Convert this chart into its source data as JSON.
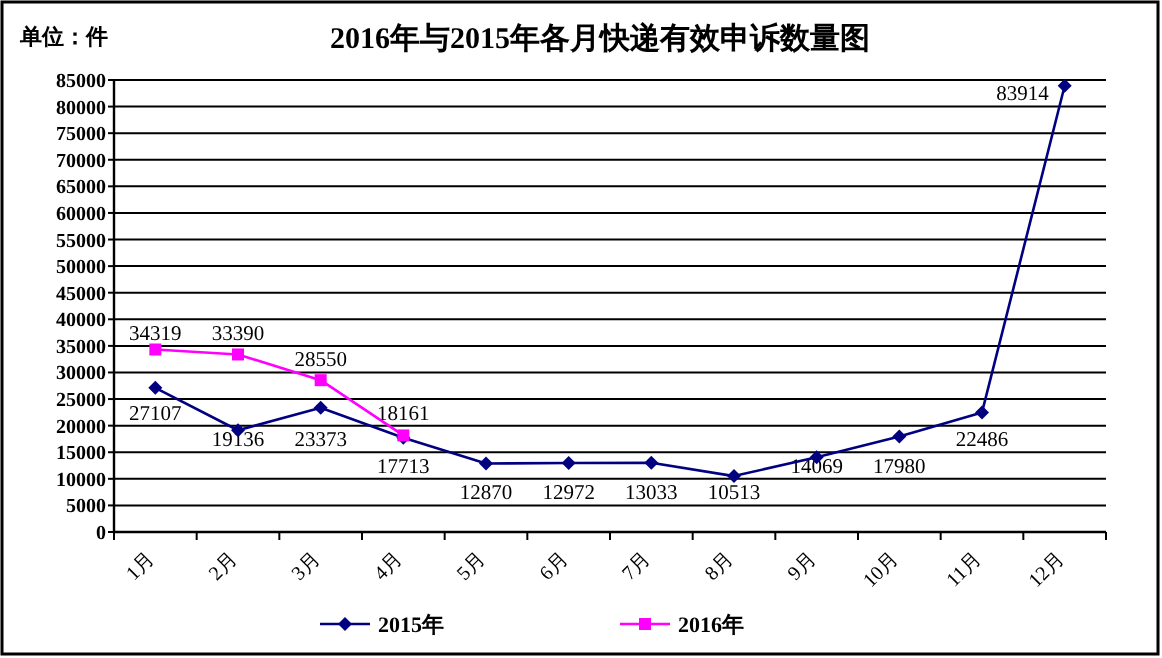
{
  "chart_data": {
    "type": "line",
    "title": "2016年与2015年各月快递有效申诉数量图",
    "annotations": [
      "单位：件"
    ],
    "categories": [
      "1月",
      "2月",
      "3月",
      "4月",
      "5月",
      "6月",
      "7月",
      "8月",
      "9月",
      "10月",
      "11月",
      "12月"
    ],
    "series": [
      {
        "name": "2015年",
        "color": "#000080",
        "marker": "diamond",
        "values": [
          27107,
          19136,
          23373,
          17713,
          12870,
          12972,
          13033,
          10513,
          14069,
          17980,
          22486,
          83914
        ]
      },
      {
        "name": "2016年",
        "color": "#ff00ff",
        "marker": "square",
        "values": [
          34319,
          33390,
          28550,
          18161,
          null,
          null,
          null,
          null,
          null,
          null,
          null,
          null
        ]
      }
    ],
    "ylim": [
      0,
      85000
    ],
    "yticks": [
      0,
      5000,
      10000,
      15000,
      20000,
      25000,
      30000,
      35000,
      40000,
      45000,
      50000,
      55000,
      60000,
      65000,
      70000,
      75000,
      80000,
      85000
    ],
    "grid": "y",
    "legend": "bottom",
    "data_labels": true,
    "line_style": "solid"
  }
}
